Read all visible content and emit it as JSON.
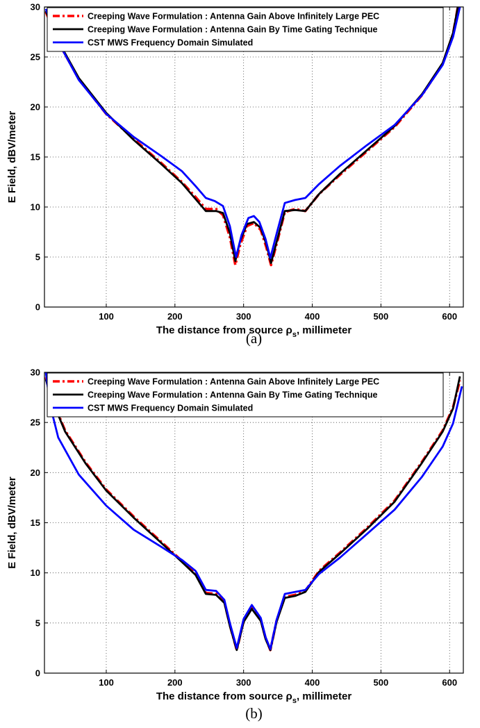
{
  "chart_data": [
    {
      "type": "line",
      "caption": "(a)",
      "xlabel": "The distance from source ρ",
      "xlabel_sub": "s",
      "xlabel_suffix": ", millimeter",
      "ylabel": "E Field, dBV/meter",
      "xlim": [
        10,
        620
      ],
      "ylim": [
        0,
        30
      ],
      "xticks": [
        100,
        200,
        300,
        400,
        500,
        600
      ],
      "yticks": [
        0,
        5,
        10,
        15,
        20,
        25,
        30
      ],
      "grid": true,
      "legend_position": "top-left",
      "series": [
        {
          "name": "Creeping Wave Formulation : Antenna Gain Above Infinitely Large PEC",
          "color": "#ff0000",
          "style": "dashdot",
          "x": [
            12,
            30,
            60,
            100,
            140,
            180,
            210,
            230,
            245,
            260,
            270,
            280,
            288,
            295,
            305,
            315,
            325,
            333,
            340,
            350,
            360,
            375,
            390,
            410,
            440,
            480,
            520,
            560,
            590,
            605,
            612
          ],
          "y": [
            29.5,
            26.5,
            22.8,
            19.3,
            16.8,
            14.4,
            12.5,
            11.0,
            9.8,
            9.8,
            9.2,
            7.0,
            4.2,
            6.2,
            8.1,
            8.4,
            7.7,
            6.0,
            4.2,
            6.8,
            9.5,
            9.8,
            9.6,
            11.3,
            13.2,
            15.6,
            18.0,
            21.2,
            24.3,
            27.3,
            30
          ]
        },
        {
          "name": "Creeping Wave Formulation : Antenna Gain By Time Gating Technique",
          "color": "#000000",
          "style": "solid",
          "x": [
            12,
            30,
            60,
            100,
            140,
            180,
            210,
            230,
            245,
            260,
            270,
            280,
            288,
            295,
            305,
            315,
            325,
            333,
            340,
            350,
            360,
            375,
            390,
            410,
            440,
            480,
            520,
            560,
            590,
            605,
            612
          ],
          "y": [
            29.6,
            26.6,
            22.9,
            19.4,
            16.7,
            14.3,
            12.4,
            10.8,
            9.6,
            9.6,
            9.4,
            7.4,
            4.6,
            6.6,
            8.3,
            8.5,
            7.9,
            6.3,
            4.4,
            7.0,
            9.6,
            9.7,
            9.6,
            11.3,
            13.3,
            15.7,
            18.1,
            21.3,
            24.4,
            27.4,
            30
          ]
        },
        {
          "name": "CST MWS Frequency Domain Simulated",
          "color": "#0000ff",
          "style": "solid",
          "x": [
            12,
            30,
            60,
            100,
            140,
            180,
            210,
            230,
            245,
            258,
            270,
            280,
            289,
            297,
            307,
            315,
            323,
            332,
            339,
            348,
            360,
            375,
            390,
            410,
            440,
            480,
            520,
            560,
            590,
            605,
            615
          ],
          "y": [
            29.8,
            26.5,
            22.7,
            19.3,
            17.0,
            15.1,
            13.6,
            12.1,
            10.9,
            10.6,
            10.1,
            8.1,
            5.0,
            7.2,
            8.9,
            9.1,
            8.5,
            6.8,
            4.9,
            7.3,
            10.4,
            10.7,
            10.9,
            12.3,
            14.1,
            16.2,
            18.2,
            21.2,
            24.2,
            27.0,
            30
          ]
        }
      ]
    },
    {
      "type": "line",
      "caption": "(b)",
      "xlabel": "The distance from source ρ",
      "xlabel_sub": "s",
      "xlabel_suffix": ", millimeter",
      "ylabel": "E Field, dBV/meter",
      "xlim": [
        10,
        620
      ],
      "ylim": [
        0,
        30
      ],
      "xticks": [
        100,
        200,
        300,
        400,
        500,
        600
      ],
      "yticks": [
        0,
        5,
        10,
        15,
        20,
        25,
        30
      ],
      "grid": true,
      "legend_position": "top-left",
      "series": [
        {
          "name": "Creeping Wave Formulation : Antenna Gain Above Infinitely Large PEC",
          "color": "#ff0000",
          "style": "dashdot",
          "x": [
            12,
            20,
            40,
            70,
            100,
            140,
            180,
            210,
            230,
            245,
            260,
            272,
            280,
            290,
            300,
            312,
            325,
            332,
            339,
            348,
            360,
            375,
            390,
            410,
            440,
            480,
            520,
            560,
            590,
            605,
            615
          ],
          "y": [
            29.5,
            27.5,
            24.2,
            21.0,
            18.3,
            15.6,
            13.1,
            11.2,
            9.9,
            8.0,
            7.9,
            7.1,
            4.8,
            2.3,
            5.2,
            6.5,
            5.3,
            3.5,
            2.3,
            5.2,
            7.6,
            7.8,
            8.2,
            10.2,
            12.0,
            14.5,
            17.2,
            21.1,
            24.2,
            26.5,
            29.2
          ]
        },
        {
          "name": "Creeping Wave Formulation : Antenna Gain By Time Gating Technique",
          "color": "#000000",
          "style": "solid",
          "x": [
            12,
            20,
            40,
            70,
            100,
            140,
            180,
            210,
            230,
            245,
            260,
            272,
            280,
            290,
            300,
            312,
            325,
            332,
            339,
            348,
            360,
            375,
            390,
            410,
            440,
            480,
            520,
            560,
            590,
            605,
            615
          ],
          "y": [
            29.3,
            27.4,
            24.1,
            20.9,
            18.2,
            15.5,
            13.0,
            11.1,
            9.8,
            7.9,
            7.8,
            7.0,
            4.7,
            2.3,
            5.1,
            6.4,
            5.2,
            3.4,
            2.3,
            5.1,
            7.5,
            7.7,
            8.1,
            10.1,
            11.9,
            14.4,
            17.1,
            21.0,
            24.1,
            26.4,
            29.6
          ]
        },
        {
          "name": "CST MWS Frequency Domain Simulated",
          "color": "#0000ff",
          "style": "solid",
          "x": [
            12,
            18,
            30,
            60,
            100,
            140,
            180,
            210,
            230,
            245,
            260,
            272,
            280,
            290,
            300,
            312,
            325,
            332,
            339,
            348,
            360,
            375,
            390,
            410,
            440,
            480,
            520,
            560,
            590,
            605,
            618
          ],
          "y": [
            30,
            26.8,
            23.5,
            19.8,
            16.7,
            14.3,
            12.6,
            11.3,
            10.2,
            8.3,
            8.2,
            7.3,
            5.0,
            2.5,
            5.4,
            6.8,
            5.5,
            3.6,
            2.4,
            5.3,
            7.9,
            8.1,
            8.3,
            9.9,
            11.5,
            13.9,
            16.3,
            19.6,
            22.6,
            24.9,
            28.6
          ]
        }
      ]
    }
  ]
}
